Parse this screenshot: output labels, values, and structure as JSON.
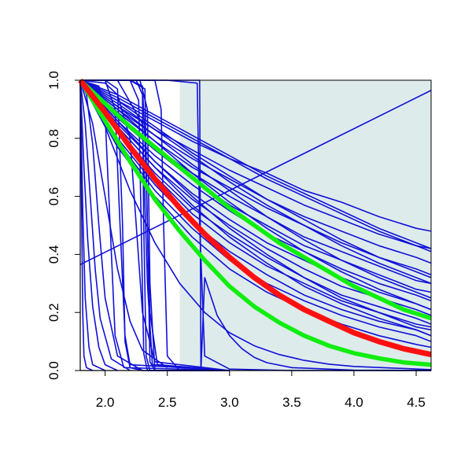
{
  "chart_data": {
    "type": "line",
    "title": "",
    "xlabel": "",
    "ylabel": "",
    "xlim": [
      1.8,
      4.62
    ],
    "ylim": [
      0.0,
      1.0
    ],
    "grid": false,
    "x_ticks": [
      "2.0",
      "2.5",
      "3.0",
      "3.5",
      "4.0",
      "4.5"
    ],
    "y_ticks": [
      "0.0",
      "0.2",
      "0.4",
      "0.6",
      "0.8",
      "1.0"
    ],
    "shaded_region": {
      "x": [
        2.6,
        4.62
      ],
      "color": "#deebeb"
    },
    "colors": {
      "blue": "#1010d8",
      "red": "#ff1010",
      "green": "#10ee10",
      "axis": "#000000"
    },
    "series": [
      {
        "group": "blue",
        "x": [
          1.8,
          4.62
        ],
        "y": [
          0.365,
          0.965
        ]
      },
      {
        "group": "blue",
        "x": [
          1.8,
          2.1,
          2.4,
          2.7,
          3.0,
          3.3,
          3.6,
          3.9,
          4.2,
          4.5,
          4.62
        ],
        "y": [
          1.0,
          0.93,
          0.86,
          0.79,
          0.73,
          0.68,
          0.62,
          0.58,
          0.53,
          0.49,
          0.48
        ]
      },
      {
        "group": "blue",
        "x": [
          1.8,
          2.1,
          2.4,
          2.7,
          3.0,
          3.3,
          3.6,
          3.9,
          4.2,
          4.5,
          4.62
        ],
        "y": [
          1.0,
          0.91,
          0.83,
          0.76,
          0.69,
          0.63,
          0.57,
          0.52,
          0.47,
          0.43,
          0.42
        ]
      },
      {
        "group": "blue",
        "x": [
          1.8,
          2.1,
          2.4,
          2.7,
          3.0,
          3.3,
          3.6,
          3.9,
          4.2,
          4.5,
          4.62
        ],
        "y": [
          1.0,
          0.9,
          0.81,
          0.73,
          0.66,
          0.59,
          0.53,
          0.48,
          0.43,
          0.39,
          0.37
        ]
      },
      {
        "group": "blue",
        "x": [
          1.8,
          2.1,
          2.4,
          2.7,
          3.0,
          3.3,
          3.6,
          3.9,
          4.2,
          4.5,
          4.62
        ],
        "y": [
          1.0,
          0.89,
          0.79,
          0.7,
          0.63,
          0.56,
          0.5,
          0.44,
          0.39,
          0.35,
          0.33
        ]
      },
      {
        "group": "blue",
        "x": [
          1.8,
          2.1,
          2.4,
          2.7,
          3.0,
          3.3,
          3.6,
          3.9,
          4.2,
          4.5,
          4.62
        ],
        "y": [
          1.0,
          0.88,
          0.77,
          0.68,
          0.6,
          0.53,
          0.46,
          0.41,
          0.36,
          0.31,
          0.3
        ]
      },
      {
        "group": "blue",
        "x": [
          1.8,
          2.1,
          2.4,
          2.7,
          3.0,
          3.3,
          3.6,
          3.9,
          4.2,
          4.5,
          4.62
        ],
        "y": [
          1.0,
          0.87,
          0.76,
          0.66,
          0.57,
          0.5,
          0.43,
          0.38,
          0.33,
          0.28,
          0.27
        ]
      },
      {
        "group": "blue",
        "x": [
          1.8,
          2.1,
          2.4,
          2.7,
          3.0,
          3.3,
          3.6,
          3.9,
          4.2,
          4.5,
          4.62
        ],
        "y": [
          1.0,
          0.86,
          0.74,
          0.64,
          0.55,
          0.47,
          0.41,
          0.35,
          0.3,
          0.26,
          0.24
        ]
      },
      {
        "group": "blue",
        "x": [
          1.8,
          2.1,
          2.4,
          2.7,
          3.0,
          3.3,
          3.6,
          3.9,
          4.2,
          4.5,
          4.62
        ],
        "y": [
          1.0,
          0.85,
          0.72,
          0.61,
          0.52,
          0.44,
          0.38,
          0.32,
          0.27,
          0.23,
          0.21
        ]
      },
      {
        "group": "blue",
        "x": [
          1.8,
          2.1,
          2.4,
          2.7,
          3.0,
          3.3,
          3.6,
          3.9,
          4.2,
          4.5,
          4.62
        ],
        "y": [
          1.0,
          0.84,
          0.7,
          0.59,
          0.5,
          0.42,
          0.35,
          0.29,
          0.25,
          0.21,
          0.19
        ]
      },
      {
        "group": "blue",
        "x": [
          1.8,
          2.1,
          2.4,
          2.7,
          3.0,
          3.3,
          3.6,
          3.9,
          4.2,
          4.5,
          4.62
        ],
        "y": [
          1.0,
          0.83,
          0.68,
          0.56,
          0.47,
          0.39,
          0.32,
          0.26,
          0.22,
          0.18,
          0.16
        ]
      },
      {
        "group": "blue",
        "x": [
          1.8,
          2.1,
          2.4,
          2.7,
          3.0,
          3.3,
          3.6,
          3.9,
          4.2,
          4.5,
          4.62
        ],
        "y": [
          1.0,
          0.82,
          0.67,
          0.54,
          0.44,
          0.36,
          0.3,
          0.24,
          0.2,
          0.16,
          0.15
        ]
      },
      {
        "group": "blue",
        "x": [
          1.8,
          2.1,
          2.4,
          2.7,
          3.0,
          3.3,
          3.6,
          3.9,
          4.2,
          4.5,
          4.62
        ],
        "y": [
          1.0,
          0.8,
          0.64,
          0.51,
          0.41,
          0.33,
          0.26,
          0.21,
          0.17,
          0.14,
          0.12
        ]
      },
      {
        "group": "blue",
        "x": [
          1.8,
          2.1,
          2.4,
          2.7,
          3.0,
          3.3,
          3.6,
          3.9,
          4.2,
          4.5,
          4.62
        ],
        "y": [
          1.0,
          0.79,
          0.62,
          0.49,
          0.38,
          0.3,
          0.24,
          0.19,
          0.15,
          0.12,
          0.1
        ]
      },
      {
        "group": "blue",
        "x": [
          1.8,
          2.1,
          2.4,
          2.7,
          3.0,
          3.3,
          3.6,
          3.9,
          4.2,
          4.5,
          4.62
        ],
        "y": [
          1.0,
          0.77,
          0.6,
          0.46,
          0.35,
          0.27,
          0.21,
          0.16,
          0.12,
          0.09,
          0.08
        ]
      },
      {
        "group": "blue",
        "x": [
          1.8,
          2.1,
          2.4,
          2.7,
          3.0,
          3.3,
          3.6,
          3.9,
          4.2,
          4.5,
          4.62
        ],
        "y": [
          1.0,
          0.93,
          0.84,
          0.75,
          0.67,
          0.59,
          0.52,
          0.45,
          0.39,
          0.34,
          0.32
        ]
      },
      {
        "group": "blue",
        "x": [
          1.8,
          2.1,
          2.4,
          2.7,
          3.0,
          3.3,
          3.6,
          3.9,
          4.2,
          4.5,
          4.62
        ],
        "y": [
          1.0,
          0.92,
          0.83,
          0.74,
          0.65,
          0.57,
          0.5,
          0.43,
          0.37,
          0.32,
          0.3
        ]
      },
      {
        "group": "blue",
        "x": [
          1.8,
          2.1,
          2.4,
          2.7,
          3.0,
          3.3,
          3.6,
          3.9,
          4.2,
          4.5,
          4.62
        ],
        "y": [
          1.0,
          0.94,
          0.87,
          0.8,
          0.73,
          0.66,
          0.6,
          0.54,
          0.48,
          0.43,
          0.41
        ]
      },
      {
        "group": "blue",
        "x": [
          1.8,
          2.1,
          2.4,
          2.7,
          3.0,
          3.3,
          3.6,
          3.9,
          4.2,
          4.5,
          4.62
        ],
        "y": [
          1.0,
          0.95,
          0.88,
          0.81,
          0.74,
          0.67,
          0.61,
          0.55,
          0.49,
          0.44,
          0.42
        ]
      },
      {
        "group": "blue",
        "x": [
          1.8,
          2.1,
          2.4,
          2.7,
          3.0,
          3.3,
          3.6,
          3.9,
          4.2,
          4.5,
          4.62
        ],
        "y": [
          1.0,
          0.91,
          0.81,
          0.71,
          0.62,
          0.53,
          0.45,
          0.38,
          0.32,
          0.27,
          0.25
        ]
      },
      {
        "group": "blue",
        "x": [
          1.8,
          2.1,
          2.4,
          2.7,
          3.0,
          3.3,
          3.6,
          3.9,
          4.2,
          4.5,
          4.62
        ],
        "y": [
          1.0,
          0.9,
          0.79,
          0.68,
          0.58,
          0.49,
          0.41,
          0.34,
          0.28,
          0.23,
          0.21
        ]
      },
      {
        "group": "blue",
        "x": [
          1.8,
          2.1,
          2.4,
          2.7,
          3.0,
          3.3,
          3.6,
          3.9,
          4.2,
          4.5,
          4.62
        ],
        "y": [
          1.0,
          0.86,
          0.72,
          0.6,
          0.49,
          0.4,
          0.32,
          0.25,
          0.2,
          0.15,
          0.14
        ]
      },
      {
        "group": "blue",
        "x": [
          1.8,
          2.1,
          2.4,
          2.7,
          3.0,
          3.3,
          3.6,
          3.9,
          4.2,
          4.5,
          4.62
        ],
        "y": [
          1.0,
          0.84,
          0.7,
          0.57,
          0.46,
          0.37,
          0.29,
          0.23,
          0.18,
          0.14,
          0.12
        ]
      },
      {
        "group": "blue",
        "x": [
          1.8,
          2.0,
          2.2,
          2.4,
          2.6,
          2.8,
          3.0,
          3.2,
          3.4,
          3.6,
          3.8,
          4.0,
          4.62
        ],
        "y": [
          1.0,
          0.84,
          0.62,
          0.44,
          0.3,
          0.2,
          0.13,
          0.085,
          0.055,
          0.035,
          0.022,
          0.014,
          0.003
        ]
      },
      {
        "group": "blue",
        "x": [
          1.8,
          2.76,
          2.77,
          2.8,
          2.9,
          3.0,
          3.1,
          3.2,
          3.3,
          3.5,
          4.0,
          4.62
        ],
        "y": [
          1.0,
          1.0,
          0.0,
          0.32,
          0.19,
          0.12,
          0.075,
          0.045,
          0.027,
          0.01,
          0.001,
          0.0
        ]
      },
      {
        "group": "blue",
        "x": [
          1.8,
          2.5,
          2.74,
          2.76,
          2.8,
          3.0,
          3.5,
          4.62
        ],
        "y": [
          1.0,
          1.0,
          0.99,
          0.5,
          0.05,
          0.005,
          0.0,
          0.0
        ]
      },
      {
        "group": "blue",
        "x": [
          1.8,
          2.4,
          2.45,
          2.47,
          2.5,
          2.6,
          3.0
        ],
        "y": [
          1.0,
          1.0,
          0.9,
          0.5,
          0.05,
          0.0,
          0.0
        ]
      },
      {
        "group": "blue",
        "x": [
          1.8,
          2.2,
          2.32,
          2.34,
          2.36,
          2.4,
          3.0
        ],
        "y": [
          1.0,
          1.0,
          0.97,
          0.5,
          0.03,
          0.0,
          0.0
        ]
      },
      {
        "group": "blue",
        "x": [
          1.8,
          2.25,
          2.3,
          2.31,
          2.33,
          2.36,
          3.0
        ],
        "y": [
          1.0,
          1.0,
          0.95,
          0.5,
          0.05,
          0.0,
          0.0
        ]
      },
      {
        "group": "blue",
        "x": [
          1.8,
          2.28,
          2.34,
          2.36,
          2.4,
          3.0
        ],
        "y": [
          1.0,
          1.0,
          0.9,
          0.3,
          0.0,
          0.0
        ]
      },
      {
        "group": "blue",
        "x": [
          1.8,
          2.2,
          2.27,
          2.29,
          2.31,
          2.34,
          3.0
        ],
        "y": [
          1.0,
          1.0,
          0.93,
          0.5,
          0.06,
          0.0,
          0.0
        ]
      },
      {
        "group": "blue",
        "x": [
          1.8,
          2.1,
          2.3,
          2.34,
          2.38,
          3.0
        ],
        "y": [
          1.0,
          1.0,
          0.85,
          0.3,
          0.02,
          0.0
        ]
      },
      {
        "group": "blue",
        "x": [
          1.8,
          2.0,
          2.1,
          2.14,
          2.16,
          2.2,
          2.3,
          3.0
        ],
        "y": [
          1.0,
          1.0,
          0.97,
          0.5,
          0.1,
          0.01,
          0.0,
          0.0
        ]
      },
      {
        "group": "blue",
        "x": [
          1.8,
          2.0,
          2.08,
          2.12,
          2.16,
          2.2,
          3.0
        ],
        "y": [
          1.0,
          1.0,
          0.9,
          0.5,
          0.12,
          0.02,
          0.0
        ]
      },
      {
        "group": "blue",
        "x": [
          1.8,
          1.95,
          2.0,
          2.04,
          2.08,
          2.15,
          3.0
        ],
        "y": [
          1.0,
          0.98,
          0.88,
          0.5,
          0.12,
          0.01,
          0.0
        ]
      },
      {
        "group": "blue",
        "x": [
          1.8,
          1.85,
          1.9,
          1.95,
          2.0,
          2.1,
          2.3
        ],
        "y": [
          1.0,
          0.95,
          0.78,
          0.5,
          0.25,
          0.05,
          0.0
        ]
      },
      {
        "group": "blue",
        "x": [
          1.8,
          1.84,
          1.88,
          1.92,
          1.96,
          2.05,
          2.2
        ],
        "y": [
          1.0,
          0.85,
          0.6,
          0.35,
          0.18,
          0.04,
          0.0
        ]
      },
      {
        "group": "blue",
        "x": [
          1.8,
          1.83,
          1.86,
          1.9,
          1.95,
          2.0,
          2.1
        ],
        "y": [
          1.0,
          0.7,
          0.45,
          0.22,
          0.08,
          0.02,
          0.0
        ]
      },
      {
        "group": "blue",
        "x": [
          1.8,
          1.82,
          1.84,
          1.87,
          1.9,
          2.0
        ],
        "y": [
          1.0,
          0.55,
          0.25,
          0.08,
          0.02,
          0.0
        ]
      },
      {
        "group": "blue",
        "x": [
          1.8,
          1.81,
          1.82,
          1.83,
          1.85,
          1.9
        ],
        "y": [
          1.0,
          0.6,
          0.2,
          0.05,
          0.01,
          0.0
        ]
      },
      {
        "group": "blue",
        "x": [
          1.8,
          2.0,
          2.1,
          2.2,
          2.25,
          2.3,
          2.4,
          3.0
        ],
        "y": [
          1.0,
          0.99,
          0.95,
          0.8,
          0.5,
          0.2,
          0.03,
          0.0
        ]
      },
      {
        "group": "blue",
        "x": [
          1.8,
          2.2,
          2.3,
          2.32,
          2.36,
          2.42,
          3.0
        ],
        "y": [
          1.0,
          1.0,
          0.98,
          0.8,
          0.2,
          0.02,
          0.0
        ]
      },
      {
        "group": "blue",
        "x": [
          1.8,
          1.9,
          2.0,
          2.1,
          2.2,
          2.3,
          2.5
        ],
        "y": [
          1.0,
          0.85,
          0.6,
          0.35,
          0.17,
          0.07,
          0.01
        ]
      },
      {
        "group": "green",
        "x": [
          1.8,
          2.0,
          2.2,
          2.4,
          2.6,
          2.8,
          3.0,
          3.2,
          3.4,
          3.6,
          3.8,
          4.0,
          4.2,
          4.4,
          4.62
        ],
        "y": [
          1.0,
          0.92,
          0.84,
          0.77,
          0.7,
          0.63,
          0.56,
          0.5,
          0.44,
          0.39,
          0.34,
          0.29,
          0.25,
          0.21,
          0.18
        ]
      },
      {
        "group": "green",
        "x": [
          1.8,
          2.0,
          2.2,
          2.4,
          2.6,
          2.8,
          3.0,
          3.2,
          3.4,
          3.6,
          3.8,
          4.0,
          4.2,
          4.4,
          4.62
        ],
        "y": [
          1.0,
          0.86,
          0.72,
          0.59,
          0.48,
          0.38,
          0.29,
          0.22,
          0.165,
          0.12,
          0.085,
          0.06,
          0.042,
          0.028,
          0.02
        ]
      },
      {
        "group": "red",
        "x": [
          1.8,
          2.0,
          2.2,
          2.4,
          2.6,
          2.8,
          3.0,
          3.2,
          3.4,
          3.6,
          3.8,
          4.0,
          4.2,
          4.4,
          4.62
        ],
        "y": [
          1.0,
          0.89,
          0.77,
          0.66,
          0.56,
          0.47,
          0.39,
          0.32,
          0.26,
          0.21,
          0.17,
          0.13,
          0.1,
          0.075,
          0.055
        ]
      }
    ]
  }
}
